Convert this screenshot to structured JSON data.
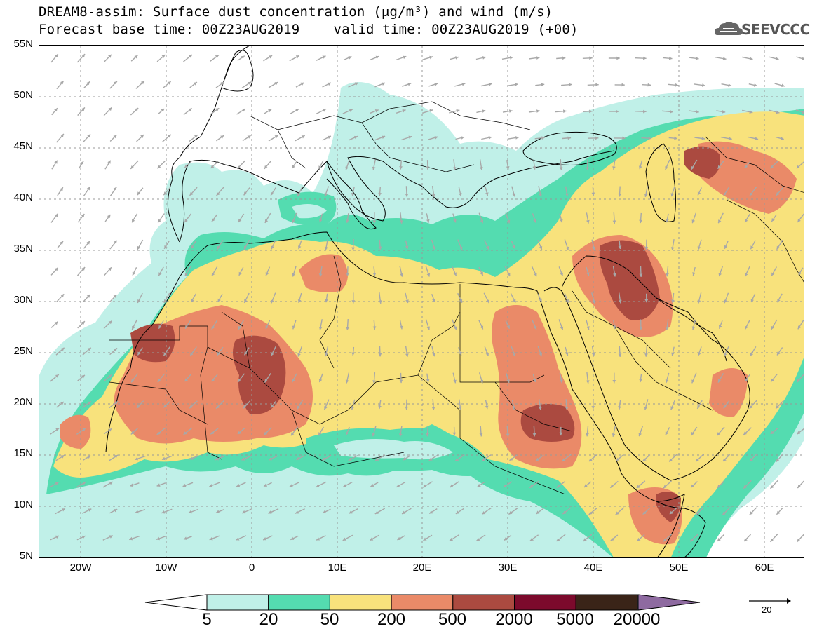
{
  "title": {
    "line1": "DREAM8-assim: Surface dust concentration (μg/m³) and wind (m/s)",
    "forecast": "Forecast base time: 00Z23AUG2019",
    "valid": "valid time: 00Z23AUG2019 (+00)"
  },
  "logo": {
    "text": "SEEVCCC",
    "icon": "cloud-icon"
  },
  "lat_labels": [
    "55N",
    "50N",
    "45N",
    "40N",
    "35N",
    "30N",
    "25N",
    "20N",
    "15N",
    "10N",
    "5N"
  ],
  "lon_labels": [
    "20W",
    "10W",
    "0",
    "10E",
    "20E",
    "30E",
    "40E",
    "50E",
    "60E"
  ],
  "colorbar": {
    "labels": [
      "5",
      "20",
      "50",
      "200",
      "500",
      "2000",
      "5000",
      "20000"
    ],
    "colors": [
      "#c0f0e8",
      "#54dcb0",
      "#f8e27c",
      "#ea8a68",
      "#ab4a40",
      "#7c0a2c",
      "#3a2418",
      "#8e6aa0"
    ]
  },
  "reference_vector": {
    "label": "20"
  }
}
